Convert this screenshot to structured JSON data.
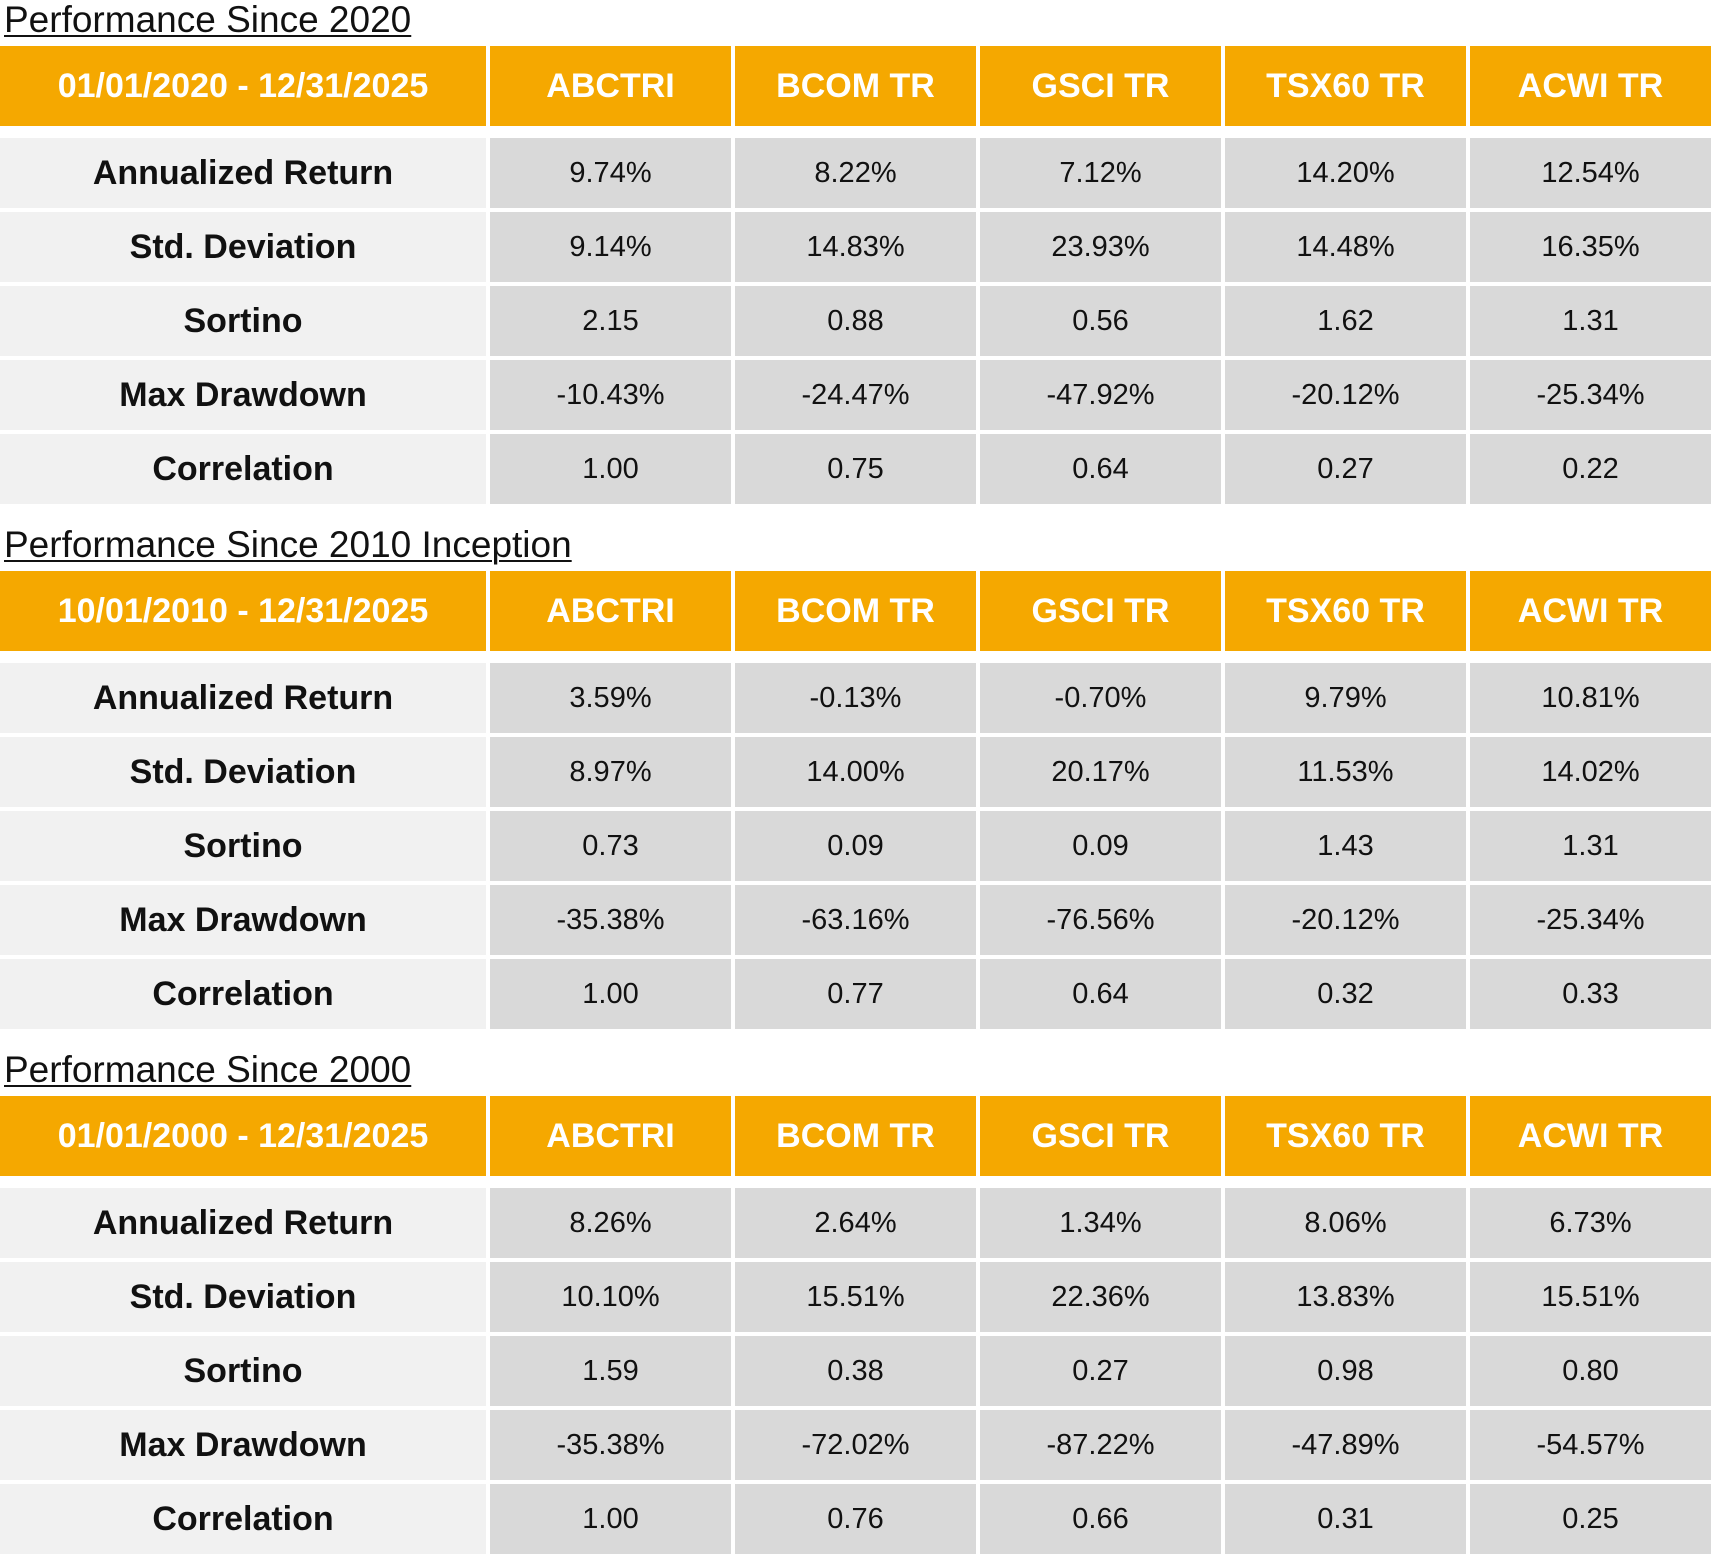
{
  "chart_data": [
    {
      "type": "table",
      "title": "Performance Since 2020",
      "period": "01/01/2020 - 12/31/2025",
      "columns": [
        "ABCTRI",
        "BCOM TR",
        "GSCI TR",
        "TSX60 TR",
        "ACWI TR"
      ],
      "rows": [
        {
          "label": "Annualized Return",
          "values": [
            "9.74%",
            "8.22%",
            "7.12%",
            "14.20%",
            "12.54%"
          ]
        },
        {
          "label": "Std. Deviation",
          "values": [
            "9.14%",
            "14.83%",
            "23.93%",
            "14.48%",
            "16.35%"
          ]
        },
        {
          "label": "Sortino",
          "values": [
            "2.15",
            "0.88",
            "0.56",
            "1.62",
            "1.31"
          ]
        },
        {
          "label": "Max Drawdown",
          "values": [
            "-10.43%",
            "-24.47%",
            "-47.92%",
            "-20.12%",
            "-25.34%"
          ]
        },
        {
          "label": "Correlation",
          "values": [
            "1.00",
            "0.75",
            "0.64",
            "0.27",
            "0.22"
          ]
        }
      ]
    },
    {
      "type": "table",
      "title": "Performance Since 2010 Inception",
      "period": "10/01/2010 - 12/31/2025",
      "columns": [
        "ABCTRI",
        "BCOM TR",
        "GSCI TR",
        "TSX60 TR",
        "ACWI TR"
      ],
      "rows": [
        {
          "label": "Annualized Return",
          "values": [
            "3.59%",
            "-0.13%",
            "-0.70%",
            "9.79%",
            "10.81%"
          ]
        },
        {
          "label": "Std. Deviation",
          "values": [
            "8.97%",
            "14.00%",
            "20.17%",
            "11.53%",
            "14.02%"
          ]
        },
        {
          "label": "Sortino",
          "values": [
            "0.73",
            "0.09",
            "0.09",
            "1.43",
            "1.31"
          ]
        },
        {
          "label": "Max Drawdown",
          "values": [
            "-35.38%",
            "-63.16%",
            "-76.56%",
            "-20.12%",
            "-25.34%"
          ]
        },
        {
          "label": "Correlation",
          "values": [
            "1.00",
            "0.77",
            "0.64",
            "0.32",
            "0.33"
          ]
        }
      ]
    },
    {
      "type": "table",
      "title": "Performance Since 2000",
      "period": "01/01/2000 - 12/31/2025",
      "columns": [
        "ABCTRI",
        "BCOM TR",
        "GSCI TR",
        "TSX60 TR",
        "ACWI TR"
      ],
      "rows": [
        {
          "label": "Annualized Return",
          "values": [
            "8.26%",
            "2.64%",
            "1.34%",
            "8.06%",
            "6.73%"
          ]
        },
        {
          "label": "Std. Deviation",
          "values": [
            "10.10%",
            "15.51%",
            "22.36%",
            "13.83%",
            "15.51%"
          ]
        },
        {
          "label": "Sortino",
          "values": [
            "1.59",
            "0.38",
            "0.27",
            "0.98",
            "0.80"
          ]
        },
        {
          "label": "Max Drawdown",
          "values": [
            "-35.38%",
            "-72.02%",
            "-87.22%",
            "-47.89%",
            "-54.57%"
          ]
        },
        {
          "label": "Correlation",
          "values": [
            "1.00",
            "0.76",
            "0.66",
            "0.31",
            "0.25"
          ]
        }
      ]
    }
  ],
  "colors": {
    "header_background": "#f5a800",
    "header_text": "#ffffff",
    "label_cell_background": "#f1f1f1",
    "value_cell_background": "#d9d9d9"
  }
}
